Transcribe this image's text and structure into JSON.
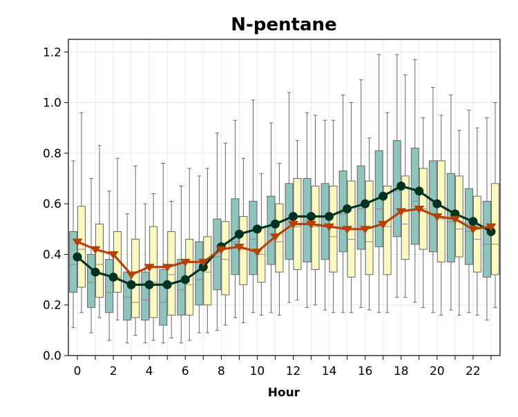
{
  "chart_data": {
    "type": "box",
    "title": "N-pentane",
    "xlabel": "Hour",
    "ylabel": "",
    "xlim": [
      -0.5,
      23.5
    ],
    "ylim": [
      0.0,
      1.25
    ],
    "xticks": [
      0,
      2,
      4,
      6,
      8,
      10,
      12,
      14,
      16,
      18,
      20,
      22
    ],
    "yticks": [
      0.0,
      0.2,
      0.4,
      0.6,
      0.8,
      1.0,
      1.2
    ],
    "grid": true,
    "colors": {
      "box_a": "#8ec4bc",
      "box_b": "#fbf8c0",
      "line_a": "#013220",
      "line_b": "#b5400a",
      "whisker": "#666666"
    },
    "box_series": [
      {
        "id": "a",
        "boxes": [
          {
            "hour": 0,
            "lo": 0.11,
            "q1": 0.25,
            "med": 0.36,
            "q3": 0.49,
            "hi": 0.77
          },
          {
            "hour": 1,
            "lo": 0.09,
            "q1": 0.19,
            "med": 0.29,
            "q3": 0.4,
            "hi": 0.7
          },
          {
            "hour": 2,
            "lo": 0.06,
            "q1": 0.17,
            "med": 0.25,
            "q3": 0.38,
            "hi": 0.65
          },
          {
            "hour": 3,
            "lo": 0.05,
            "q1": 0.14,
            "med": 0.23,
            "q3": 0.33,
            "hi": 0.56
          },
          {
            "hour": 4,
            "lo": 0.05,
            "q1": 0.14,
            "med": 0.22,
            "q3": 0.33,
            "hi": 0.6
          },
          {
            "hour": 5,
            "lo": 0.05,
            "q1": 0.12,
            "med": 0.21,
            "q3": 0.34,
            "hi": 0.76
          },
          {
            "hour": 6,
            "lo": 0.05,
            "q1": 0.16,
            "med": 0.26,
            "q3": 0.38,
            "hi": 0.67
          },
          {
            "hour": 7,
            "lo": 0.09,
            "q1": 0.2,
            "med": 0.3,
            "q3": 0.45,
            "hi": 0.71
          },
          {
            "hour": 8,
            "lo": 0.1,
            "q1": 0.26,
            "med": 0.39,
            "q3": 0.54,
            "hi": 0.88
          },
          {
            "hour": 9,
            "lo": 0.15,
            "q1": 0.32,
            "med": 0.45,
            "q3": 0.62,
            "hi": 0.93
          },
          {
            "hour": 10,
            "lo": 0.17,
            "q1": 0.32,
            "med": 0.46,
            "q3": 0.61,
            "hi": 1.01
          },
          {
            "hour": 11,
            "lo": 0.17,
            "q1": 0.36,
            "med": 0.48,
            "q3": 0.63,
            "hi": 0.92
          },
          {
            "hour": 12,
            "lo": 0.21,
            "q1": 0.38,
            "med": 0.52,
            "q3": 0.68,
            "hi": 1.04
          },
          {
            "hour": 13,
            "lo": 0.19,
            "q1": 0.37,
            "med": 0.52,
            "q3": 0.7,
            "hi": 0.96
          },
          {
            "hour": 14,
            "lo": 0.18,
            "q1": 0.38,
            "med": 0.51,
            "q3": 0.68,
            "hi": 0.93
          },
          {
            "hour": 15,
            "lo": 0.17,
            "q1": 0.41,
            "med": 0.56,
            "q3": 0.73,
            "hi": 1.03
          },
          {
            "hour": 16,
            "lo": 0.19,
            "q1": 0.42,
            "med": 0.58,
            "q3": 0.75,
            "hi": 1.09
          },
          {
            "hour": 17,
            "lo": 0.17,
            "q1": 0.43,
            "med": 0.58,
            "q3": 0.81,
            "hi": 1.19
          },
          {
            "hour": 18,
            "lo": 0.23,
            "q1": 0.47,
            "med": 0.65,
            "q3": 0.85,
            "hi": 1.19
          },
          {
            "hour": 19,
            "lo": 0.21,
            "q1": 0.44,
            "med": 0.61,
            "q3": 0.82,
            "hi": 1.17
          },
          {
            "hour": 20,
            "lo": 0.17,
            "q1": 0.41,
            "med": 0.56,
            "q3": 0.77,
            "hi": 1.06
          },
          {
            "hour": 21,
            "lo": 0.18,
            "q1": 0.37,
            "med": 0.53,
            "q3": 0.72,
            "hi": 1.03
          },
          {
            "hour": 22,
            "lo": 0.17,
            "q1": 0.36,
            "med": 0.49,
            "q3": 0.66,
            "hi": 0.97
          },
          {
            "hour": 23,
            "lo": 0.14,
            "q1": 0.31,
            "med": 0.44,
            "q3": 0.61,
            "hi": 0.94
          }
        ]
      },
      {
        "id": "b",
        "boxes": [
          {
            "hour": 0,
            "lo": 0.17,
            "q1": 0.27,
            "med": 0.42,
            "q3": 0.59,
            "hi": 0.96
          },
          {
            "hour": 1,
            "lo": 0.15,
            "q1": 0.23,
            "med": 0.36,
            "q3": 0.52,
            "hi": 0.83
          },
          {
            "hour": 2,
            "lo": 0.14,
            "q1": 0.25,
            "med": 0.31,
            "q3": 0.49,
            "hi": 0.78
          },
          {
            "hour": 3,
            "lo": 0.08,
            "q1": 0.15,
            "med": 0.21,
            "q3": 0.46,
            "hi": 0.75
          },
          {
            "hour": 4,
            "lo": 0.06,
            "q1": 0.15,
            "med": 0.29,
            "q3": 0.51,
            "hi": 0.64
          },
          {
            "hour": 5,
            "lo": 0.07,
            "q1": 0.16,
            "med": 0.32,
            "q3": 0.49,
            "hi": 0.61
          },
          {
            "hour": 6,
            "lo": 0.06,
            "q1": 0.16,
            "med": 0.28,
            "q3": 0.46,
            "hi": 0.74
          },
          {
            "hour": 7,
            "lo": 0.09,
            "q1": 0.2,
            "med": 0.33,
            "q3": 0.47,
            "hi": 0.74
          },
          {
            "hour": 8,
            "lo": 0.12,
            "q1": 0.24,
            "med": 0.38,
            "q3": 0.53,
            "hi": 0.84
          },
          {
            "hour": 9,
            "lo": 0.13,
            "q1": 0.28,
            "med": 0.42,
            "q3": 0.55,
            "hi": 0.78
          },
          {
            "hour": 10,
            "lo": 0.16,
            "q1": 0.29,
            "med": 0.4,
            "q3": 0.51,
            "hi": 0.72
          },
          {
            "hour": 11,
            "lo": 0.16,
            "q1": 0.33,
            "med": 0.45,
            "q3": 0.6,
            "hi": 0.76
          },
          {
            "hour": 12,
            "lo": 0.22,
            "q1": 0.34,
            "med": 0.51,
            "q3": 0.7,
            "hi": 0.85
          },
          {
            "hour": 13,
            "lo": 0.2,
            "q1": 0.34,
            "med": 0.51,
            "q3": 0.67,
            "hi": 0.95
          },
          {
            "hour": 14,
            "lo": 0.17,
            "q1": 0.33,
            "med": 0.47,
            "q3": 0.67,
            "hi": 0.93
          },
          {
            "hour": 15,
            "lo": 0.17,
            "q1": 0.31,
            "med": 0.46,
            "q3": 0.69,
            "hi": 1.0
          },
          {
            "hour": 16,
            "lo": 0.18,
            "q1": 0.32,
            "med": 0.45,
            "q3": 0.69,
            "hi": 0.86
          },
          {
            "hour": 17,
            "lo": 0.17,
            "q1": 0.32,
            "med": 0.51,
            "q3": 0.67,
            "hi": 0.96
          },
          {
            "hour": 18,
            "lo": 0.23,
            "q1": 0.38,
            "med": 0.52,
            "q3": 0.71,
            "hi": 1.11
          },
          {
            "hour": 19,
            "lo": 0.19,
            "q1": 0.42,
            "med": 0.58,
            "q3": 0.74,
            "hi": 0.94
          },
          {
            "hour": 20,
            "lo": 0.16,
            "q1": 0.37,
            "med": 0.54,
            "q3": 0.77,
            "hi": 0.95
          },
          {
            "hour": 21,
            "lo": 0.16,
            "q1": 0.39,
            "med": 0.5,
            "q3": 0.71,
            "hi": 0.89
          },
          {
            "hour": 22,
            "lo": 0.16,
            "q1": 0.33,
            "med": 0.46,
            "q3": 0.63,
            "hi": 0.9
          },
          {
            "hour": 23,
            "lo": 0.19,
            "q1": 0.32,
            "med": 0.44,
            "q3": 0.68,
            "hi": 1.0
          }
        ]
      }
    ],
    "series": [
      {
        "id": "a",
        "marker": "circle",
        "x": [
          0,
          1,
          2,
          3,
          4,
          5,
          6,
          7,
          8,
          9,
          10,
          11,
          12,
          13,
          14,
          15,
          16,
          17,
          18,
          19,
          20,
          21,
          22,
          23
        ],
        "values": [
          0.39,
          0.33,
          0.31,
          0.28,
          0.28,
          0.28,
          0.3,
          0.35,
          0.43,
          0.48,
          0.5,
          0.52,
          0.55,
          0.55,
          0.55,
          0.58,
          0.6,
          0.63,
          0.67,
          0.65,
          0.6,
          0.56,
          0.53,
          0.49
        ]
      },
      {
        "id": "b",
        "marker": "triangle-down",
        "x": [
          0,
          1,
          2,
          3,
          4,
          5,
          6,
          7,
          8,
          9,
          10,
          11,
          12,
          13,
          14,
          15,
          16,
          17,
          18,
          19,
          20,
          21,
          22,
          23
        ],
        "values": [
          0.45,
          0.42,
          0.4,
          0.32,
          0.35,
          0.35,
          0.37,
          0.37,
          0.42,
          0.43,
          0.41,
          0.47,
          0.52,
          0.52,
          0.51,
          0.5,
          0.5,
          0.52,
          0.57,
          0.58,
          0.55,
          0.54,
          0.5,
          0.51
        ]
      }
    ]
  }
}
